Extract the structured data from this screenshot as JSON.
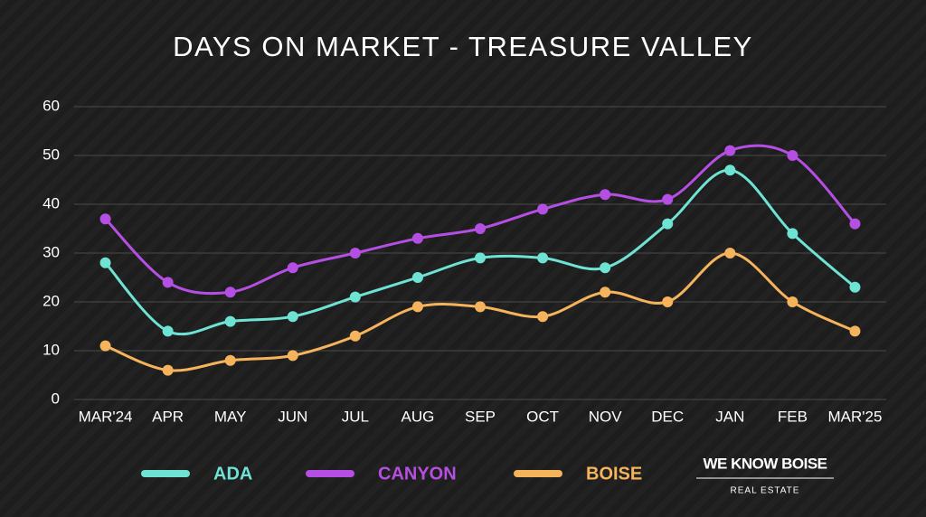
{
  "chart_data": {
    "type": "line",
    "title": "DAYS ON MARKET - TREASURE VALLEY",
    "categories": [
      "MAR'24",
      "APR",
      "MAY",
      "JUN",
      "JUL",
      "AUG",
      "SEP",
      "OCT",
      "NOV",
      "DEC",
      "JAN",
      "FEB",
      "MAR'25"
    ],
    "series": [
      {
        "name": "ADA",
        "color": "#6ee3d4",
        "values": [
          28,
          14,
          16,
          17,
          21,
          25,
          29,
          29,
          27,
          36,
          47,
          34,
          23
        ]
      },
      {
        "name": "CANYON",
        "color": "#b54fe3",
        "values": [
          37,
          24,
          22,
          27,
          30,
          33,
          35,
          39,
          42,
          41,
          51,
          50,
          36
        ]
      },
      {
        "name": "BOISE",
        "color": "#f5b35c",
        "values": [
          11,
          6,
          8,
          9,
          13,
          19,
          19,
          17,
          22,
          20,
          30,
          20,
          14
        ]
      }
    ],
    "ylim": [
      0,
      60
    ],
    "yticks": [
      0,
      10,
      20,
      30,
      40,
      50,
      60
    ],
    "grid": true,
    "legend": "bottom"
  },
  "logo": {
    "name": "WE KNOW BOISE",
    "tagline": "REAL ESTATE"
  }
}
